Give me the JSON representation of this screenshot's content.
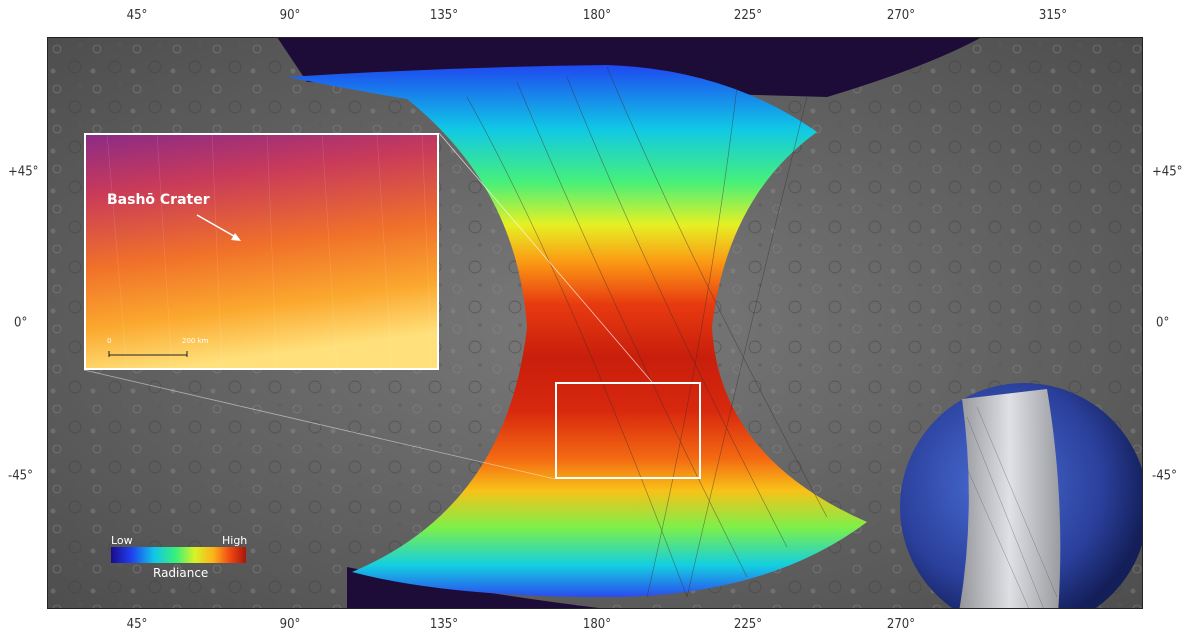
{
  "axes": {
    "top_ticks": [
      "45°",
      "90°",
      "135°",
      "180°",
      "225°",
      "270°",
      "315°"
    ],
    "bottom_ticks": [
      "45°",
      "90°",
      "135°",
      "180°",
      "225°",
      "270°"
    ],
    "left_ticks": [
      "+45°",
      "0°",
      "-45°"
    ],
    "right_ticks": [
      "+45°",
      "0°",
      "-45°"
    ]
  },
  "inset": {
    "label": "Bashō Crater",
    "scale_start": "0",
    "scale_end": "200 km"
  },
  "legend": {
    "low": "Low",
    "high": "High",
    "title": "Radiance"
  },
  "colors": {
    "frame_background": "#ffffff",
    "surface_gray": "#6b6b6b",
    "space_dark": "#1d0b38",
    "highlight_box": "#ffffff"
  },
  "icons": {
    "globe": "mercury-globe-icon",
    "arrow": "arrow-icon"
  }
}
